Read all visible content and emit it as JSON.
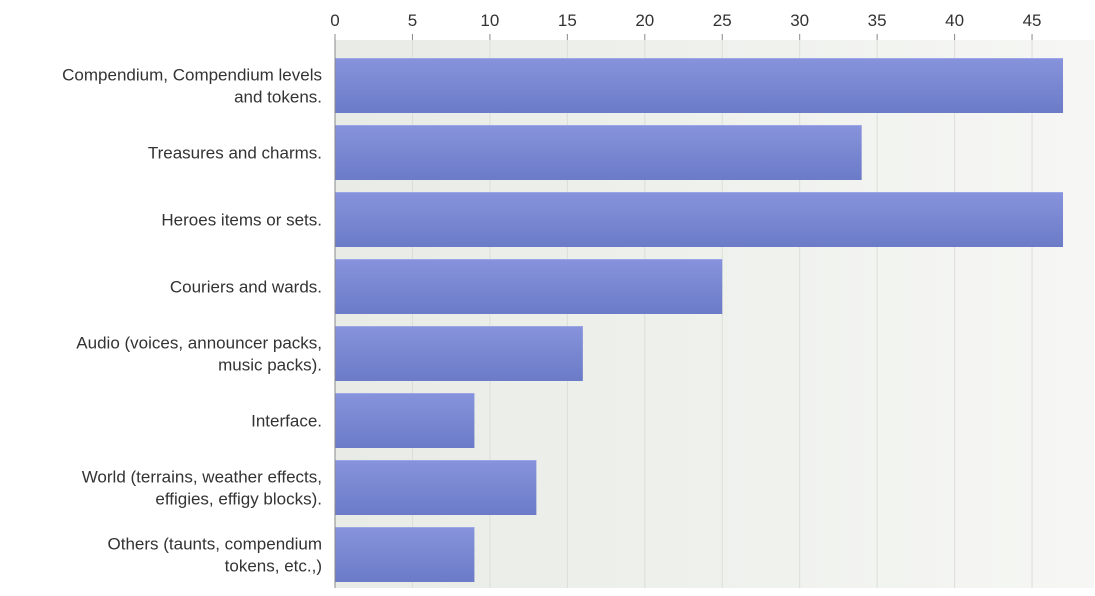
{
  "chart_data": {
    "type": "bar",
    "orientation": "horizontal",
    "title": "",
    "xlabel": "",
    "ylabel": "",
    "xlim": [
      0,
      49
    ],
    "x_ticks": [
      0,
      5,
      10,
      15,
      20,
      25,
      30,
      35,
      40,
      45
    ],
    "x_tick_labels": [
      "0",
      "5",
      "10",
      "15",
      "20",
      "25",
      "30",
      "35",
      "40",
      "45"
    ],
    "tick_position": "top",
    "grid": true,
    "legend": "none",
    "categories": [
      [
        "Compendium, Compendium levels",
        "and tokens."
      ],
      [
        "Treasures and charms."
      ],
      [
        "Heroes items or sets."
      ],
      [
        "Couriers and wards."
      ],
      [
        "Audio (voices, announcer packs,",
        "music packs)."
      ],
      [
        "Interface."
      ],
      [
        "World (terrains, weather effects,",
        "effigies, effigy blocks)."
      ],
      [
        "Others (taunts, compendium",
        "tokens, etc.,)"
      ]
    ],
    "values": [
      47,
      34,
      47,
      25,
      16,
      9,
      13,
      9
    ]
  },
  "colors": {
    "bar_top": "#8793dc",
    "bar_bottom": "#6b7bc7",
    "plot_bg_left": "#e8ebe6",
    "plot_bg_right": "#f6f7f4",
    "grid": "#dcded9",
    "axis": "#888888",
    "text": "#333333"
  }
}
